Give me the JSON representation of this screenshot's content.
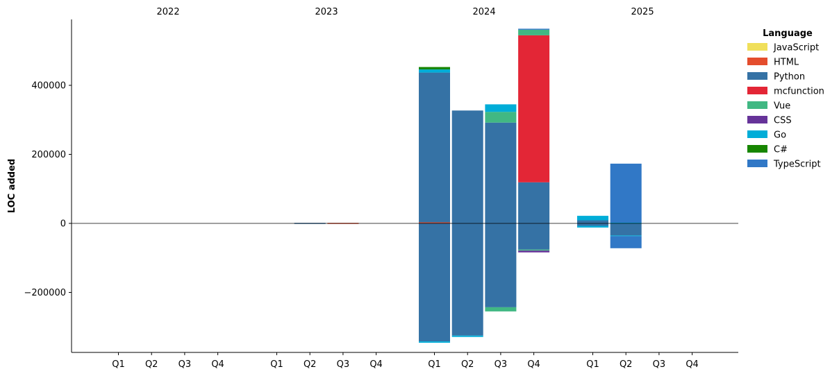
{
  "chart_data": {
    "type": "bar",
    "stacked": true,
    "ylabel": "LOC added",
    "yticks": [
      -200000,
      0,
      200000,
      400000
    ],
    "ylim": [
      -375000,
      590000
    ],
    "quarters": [
      "Q1",
      "Q2",
      "Q3",
      "Q4"
    ],
    "years": [
      "2022",
      "2023",
      "2024",
      "2025"
    ],
    "legend": {
      "title": "Language",
      "placement": "right",
      "entries": [
        {
          "name": "JavaScript",
          "color": "#f0df5a"
        },
        {
          "name": "HTML",
          "color": "#e44d2d"
        },
        {
          "name": "Python",
          "color": "#3572a5"
        },
        {
          "name": "mcfunction",
          "color": "#e32636"
        },
        {
          "name": "Vue",
          "color": "#41b883"
        },
        {
          "name": "CSS",
          "color": "#663399"
        },
        {
          "name": "Go",
          "color": "#00add8"
        },
        {
          "name": "C#",
          "color": "#178600"
        },
        {
          "name": "TypeScript",
          "color": "#3178c6"
        }
      ]
    },
    "bars": [
      {
        "year": "2023",
        "quarter": "Q2",
        "segments": [
          {
            "language": "Python",
            "from": 0,
            "to": 1500
          },
          {
            "language": "Python",
            "from": -1200,
            "to": 0
          }
        ]
      },
      {
        "year": "2023",
        "quarter": "Q3",
        "segments": [
          {
            "language": "HTML",
            "from": 0,
            "to": 1500
          },
          {
            "language": "HTML",
            "from": -1000,
            "to": 0
          }
        ]
      },
      {
        "year": "2024",
        "quarter": "Q1",
        "segments": [
          {
            "language": "HTML",
            "from": 0,
            "to": 3000
          },
          {
            "language": "Python",
            "from": 3000,
            "to": 437000
          },
          {
            "language": "Go",
            "from": 437000,
            "to": 446000
          },
          {
            "language": "C#",
            "from": 446000,
            "to": 453000
          },
          {
            "language": "Python",
            "from": -342000,
            "to": 0
          },
          {
            "language": "Go",
            "from": -346000,
            "to": -342000
          }
        ]
      },
      {
        "year": "2024",
        "quarter": "Q2",
        "segments": [
          {
            "language": "Python",
            "from": 0,
            "to": 327000
          },
          {
            "language": "Python",
            "from": -325000,
            "to": 0
          },
          {
            "language": "Go",
            "from": -329000,
            "to": -325000
          }
        ]
      },
      {
        "year": "2024",
        "quarter": "Q3",
        "segments": [
          {
            "language": "Python",
            "from": 0,
            "to": 292000
          },
          {
            "language": "Vue",
            "from": 292000,
            "to": 323000
          },
          {
            "language": "Go",
            "from": 323000,
            "to": 345000
          },
          {
            "language": "Python",
            "from": -243000,
            "to": 0
          },
          {
            "language": "Vue",
            "from": -255000,
            "to": -243000
          }
        ]
      },
      {
        "year": "2024",
        "quarter": "Q4",
        "segments": [
          {
            "language": "Python",
            "from": 0,
            "to": 119000
          },
          {
            "language": "mcfunction",
            "from": 119000,
            "to": 545000
          },
          {
            "language": "Vue",
            "from": 545000,
            "to": 561000
          },
          {
            "language": "TypeScript",
            "from": 561000,
            "to": 564000
          },
          {
            "language": "Python",
            "from": -76000,
            "to": 0
          },
          {
            "language": "Vue",
            "from": -79000,
            "to": -76000
          },
          {
            "language": "CSS",
            "from": -84000,
            "to": -79000
          }
        ]
      },
      {
        "year": "2025",
        "quarter": "Q1",
        "segments": [
          {
            "language": "Python",
            "from": 0,
            "to": 9000
          },
          {
            "language": "Go",
            "from": 9000,
            "to": 22000
          },
          {
            "language": "Python",
            "from": -7000,
            "to": 0
          },
          {
            "language": "Go",
            "from": -12000,
            "to": -7000
          }
        ]
      },
      {
        "year": "2025",
        "quarter": "Q2",
        "segments": [
          {
            "language": "Go",
            "from": 0,
            "to": 2000
          },
          {
            "language": "TypeScript",
            "from": 2000,
            "to": 173000
          },
          {
            "language": "Python",
            "from": -35000,
            "to": 0
          },
          {
            "language": "Go",
            "from": -37000,
            "to": -35000
          },
          {
            "language": "TypeScript",
            "from": -72000,
            "to": -37000
          }
        ]
      }
    ]
  }
}
